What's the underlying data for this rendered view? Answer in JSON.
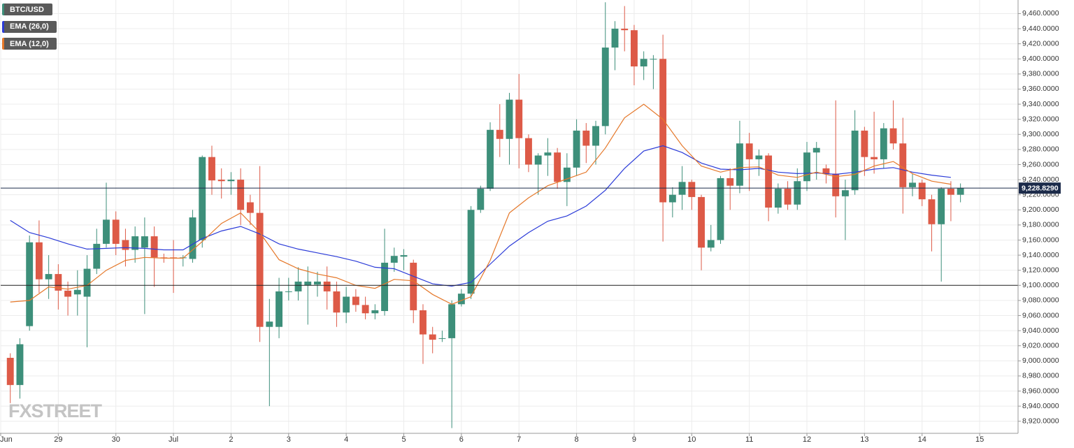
{
  "chart_data": {
    "type": "candlestick",
    "watermark": "FXSTREET",
    "grid": true,
    "xlim": [
      0,
      424
    ],
    "ylim": [
      8904,
      9478
    ],
    "xticks": [
      {
        "value": 0,
        "label": "Jun"
      },
      {
        "value": 24,
        "label": "29"
      },
      {
        "value": 48,
        "label": "30"
      },
      {
        "value": 72,
        "label": "Jul"
      },
      {
        "value": 96,
        "label": "2"
      },
      {
        "value": 120,
        "label": "3"
      },
      {
        "value": 144,
        "label": "4"
      },
      {
        "value": 168,
        "label": "5"
      },
      {
        "value": 192,
        "label": "6"
      },
      {
        "value": 216,
        "label": "7"
      },
      {
        "value": 240,
        "label": "8"
      },
      {
        "value": 264,
        "label": "9"
      },
      {
        "value": 288,
        "label": "10"
      },
      {
        "value": 312,
        "label": "11"
      },
      {
        "value": 336,
        "label": "12"
      },
      {
        "value": 360,
        "label": "13"
      },
      {
        "value": 384,
        "label": "14"
      },
      {
        "value": 408,
        "label": "15"
      }
    ],
    "yticks": [
      {
        "value": 8920,
        "label": "8,920.0000"
      },
      {
        "value": 8940,
        "label": "8,940.0000"
      },
      {
        "value": 8960,
        "label": "8,960.0000"
      },
      {
        "value": 8980,
        "label": "8,980.0000"
      },
      {
        "value": 9000,
        "label": "9,000.0000"
      },
      {
        "value": 9020,
        "label": "9,020.0000"
      },
      {
        "value": 9040,
        "label": "9,040.0000"
      },
      {
        "value": 9060,
        "label": "9,060.0000"
      },
      {
        "value": 9080,
        "label": "9,080.0000"
      },
      {
        "value": 9100,
        "label": "9,100.0000"
      },
      {
        "value": 9120,
        "label": "9,120.0000"
      },
      {
        "value": 9140,
        "label": "9,140.0000"
      },
      {
        "value": 9160,
        "label": "9,160.0000"
      },
      {
        "value": 9180,
        "label": "9,180.0000"
      },
      {
        "value": 9200,
        "label": "9,200.0000"
      },
      {
        "value": 9220,
        "label": "9,220.0000"
      },
      {
        "value": 9240,
        "label": "9,240.0000"
      },
      {
        "value": 9260,
        "label": "9,260.0000"
      },
      {
        "value": 9280,
        "label": "9,280.0000"
      },
      {
        "value": 9300,
        "label": "9,300.0000"
      },
      {
        "value": 9320,
        "label": "9,320.0000"
      },
      {
        "value": 9340,
        "label": "9,340.0000"
      },
      {
        "value": 9360,
        "label": "9,360.0000"
      },
      {
        "value": 9380,
        "label": "9,380.0000"
      },
      {
        "value": 9400,
        "label": "9,400.0000"
      },
      {
        "value": 9420,
        "label": "9,420.0000"
      },
      {
        "value": 9440,
        "label": "9,440.0000"
      },
      {
        "value": 9460,
        "label": "9,460.0000"
      }
    ],
    "current_price": {
      "value": 9228.829,
      "label": "9,228.8290",
      "color": "#1c2b4a"
    },
    "reference_line": {
      "value": 9100,
      "color": "#222222"
    },
    "series": [
      {
        "name": "BTC/USD",
        "up_color": "#3d8f7a",
        "down_color": "#dd5a47",
        "x": [
          4,
          8,
          12,
          16,
          20,
          24,
          28,
          32,
          36,
          40,
          44,
          48,
          52,
          56,
          60,
          64,
          68,
          72,
          76,
          80,
          84,
          88,
          92,
          96,
          100,
          104,
          108,
          112,
          116,
          120,
          124,
          128,
          132,
          136,
          140,
          144,
          148,
          152,
          156,
          160,
          164,
          168,
          172,
          176,
          180,
          184,
          188,
          192,
          196,
          200,
          204,
          208,
          212,
          216,
          220,
          224,
          228,
          232,
          236,
          240,
          244,
          248,
          252,
          256,
          260,
          264,
          268,
          272,
          276,
          280,
          284,
          288,
          292,
          296,
          300,
          304,
          308,
          312,
          316,
          320,
          324,
          328,
          332,
          336,
          340,
          344,
          348,
          352,
          356,
          360,
          364,
          368,
          372,
          376,
          380,
          384,
          388,
          392,
          396,
          400
        ],
        "open": [
          9004,
          8968,
          9046,
          9157,
          9108,
          9115,
          9093,
          9088,
          9085,
          9122,
          9155,
          9187,
          9160,
          9147,
          9150,
          9165,
          9137,
          9137,
          9136,
          9135,
          9160,
          9270,
          9240,
          9238,
          9240,
          9210,
          9196,
          9045,
          9045,
          9092,
          9092,
          9100,
          9101,
          9105,
          9092,
          9064,
          9085,
          9074,
          9063,
          9066,
          9130,
          9138,
          9130,
          9067,
          9035,
          9030,
          9030,
          9075,
          9089,
          9200,
          9228,
          9306,
          9294,
          9346,
          9295,
          9260,
          9272,
          9276,
          9237,
          9256,
          9305,
          9285,
          9311,
          9415,
          9440,
          9438,
          9390,
          9400,
          9400,
          9210,
          9220,
          9237,
          9217,
          9150,
          9160,
          9242,
          9232,
          9288,
          9267,
          9272,
          9203,
          9228,
          9207,
          9238,
          9276,
          9255,
          9248,
          9218,
          9226,
          9305,
          9270,
          9267,
          9308,
          9288,
          9230,
          9236,
          9214,
          9181,
          9228,
          9220
        ],
        "high": [
          9010,
          9030,
          9166,
          9186,
          9140,
          9128,
          9105,
          9120,
          9140,
          9175,
          9236,
          9198,
          9175,
          9178,
          9190,
          9178,
          9142,
          9160,
          9140,
          9200,
          9272,
          9285,
          9255,
          9250,
          9255,
          9220,
          9258,
          9082,
          9110,
          9110,
          9124,
          9125,
          9118,
          9125,
          9105,
          9098,
          9095,
          9085,
          9075,
          9175,
          9150,
          9148,
          9134,
          9075,
          9045,
          9040,
          9080,
          9095,
          9205,
          9232,
          9316,
          9340,
          9355,
          9380,
          9300,
          9275,
          9295,
          9282,
          9275,
          9320,
          9315,
          9318,
          9475,
          9450,
          9470,
          9445,
          9410,
          9405,
          9432,
          9230,
          9258,
          9240,
          9220,
          9180,
          9245,
          9255,
          9318,
          9302,
          9280,
          9275,
          9235,
          9238,
          9255,
          9290,
          9290,
          9260,
          9345,
          9240,
          9332,
          9310,
          9330,
          9315,
          9345,
          9322,
          9248,
          9240,
          9220,
          9230,
          9238,
          9235
        ],
        "low": [
          8944,
          8950,
          9040,
          9090,
          9082,
          9068,
          9060,
          9060,
          9018,
          9115,
          9150,
          9140,
          9125,
          9130,
          9062,
          9098,
          9130,
          9090,
          9125,
          9130,
          9150,
          9220,
          9215,
          9220,
          9180,
          9180,
          9025,
          8940,
          9030,
          9080,
          9080,
          9048,
          9085,
          9068,
          9045,
          9050,
          9065,
          9055,
          9055,
          9060,
          9118,
          9120,
          9050,
          8996,
          9010,
          9025,
          8911,
          9072,
          9082,
          9196,
          9225,
          9270,
          9260,
          9255,
          9250,
          9220,
          9245,
          9228,
          9205,
          9245,
          9262,
          9260,
          9300,
          9385,
          9410,
          9365,
          9372,
          9360,
          9158,
          9190,
          9200,
          9200,
          9120,
          9145,
          9155,
          9200,
          9222,
          9225,
          9245,
          9185,
          9195,
          9200,
          9200,
          9225,
          9240,
          9235,
          9190,
          9160,
          9220,
          9245,
          9248,
          9255,
          9280,
          9195,
          9218,
          9205,
          9145,
          9105,
          9185,
          9210
        ],
        "close": [
          8968,
          9022,
          9157,
          9108,
          9115,
          9093,
          9085,
          9094,
          9122,
          9155,
          9187,
          9155,
          9147,
          9165,
          9165,
          9137,
          9136,
          9136,
          9137,
          9190,
          9270,
          9239,
          9238,
          9240,
          9200,
          9196,
          9045,
          9052,
          9092,
          9092,
          9105,
          9105,
          9105,
          9092,
          9064,
          9085,
          9074,
          9063,
          9067,
          9130,
          9139,
          9140,
          9067,
          9035,
          9028,
          9030,
          9075,
          9089,
          9200,
          9228,
          9306,
          9294,
          9346,
          9295,
          9260,
          9272,
          9276,
          9237,
          9256,
          9305,
          9285,
          9311,
          9415,
          9440,
          9438,
          9390,
          9400,
          9400,
          9210,
          9220,
          9237,
          9217,
          9150,
          9160,
          9242,
          9232,
          9288,
          9267,
          9272,
          9203,
          9228,
          9207,
          9238,
          9276,
          9282,
          9248,
          9218,
          9226,
          9305,
          9270,
          9267,
          9308,
          9288,
          9230,
          9236,
          9214,
          9181,
          9228,
          9220,
          9229
        ]
      },
      {
        "name": "EMA (26,0)",
        "color": "#2b3bd8",
        "x": [
          4,
          12,
          20,
          28,
          36,
          44,
          52,
          60,
          68,
          76,
          84,
          92,
          100,
          108,
          116,
          124,
          132,
          140,
          148,
          156,
          164,
          172,
          180,
          188,
          196,
          204,
          212,
          220,
          228,
          236,
          244,
          252,
          260,
          268,
          276,
          284,
          292,
          300,
          308,
          316,
          324,
          332,
          340,
          348,
          356,
          364,
          372,
          380,
          388,
          396
        ],
        "values": [
          9186,
          9170,
          9163,
          9155,
          9148,
          9149,
          9150,
          9149,
          9147,
          9147,
          9162,
          9172,
          9178,
          9168,
          9155,
          9148,
          9143,
          9138,
          9132,
          9124,
          9122,
          9112,
          9102,
          9099,
          9104,
          9128,
          9152,
          9170,
          9185,
          9192,
          9205,
          9226,
          9255,
          9278,
          9285,
          9276,
          9262,
          9254,
          9253,
          9255,
          9250,
          9248,
          9249,
          9247,
          9250,
          9254,
          9256,
          9250,
          9246,
          9243
        ]
      },
      {
        "name": "EMA (12,0)",
        "color": "#e5782a",
        "x": [
          4,
          12,
          20,
          28,
          36,
          44,
          52,
          60,
          68,
          76,
          84,
          92,
          100,
          108,
          116,
          124,
          132,
          140,
          148,
          156,
          164,
          172,
          180,
          188,
          196,
          204,
          212,
          220,
          228,
          236,
          244,
          252,
          260,
          268,
          276,
          284,
          292,
          300,
          308,
          316,
          324,
          332,
          340,
          348,
          356,
          364,
          372,
          380,
          388,
          396
        ],
        "values": [
          9078,
          9080,
          9098,
          9095,
          9100,
          9120,
          9133,
          9137,
          9136,
          9136,
          9158,
          9182,
          9196,
          9170,
          9134,
          9122,
          9115,
          9110,
          9100,
          9096,
          9108,
          9106,
          9088,
          9075,
          9085,
          9133,
          9196,
          9216,
          9232,
          9241,
          9250,
          9282,
          9322,
          9340,
          9320,
          9285,
          9258,
          9250,
          9256,
          9257,
          9246,
          9243,
          9250,
          9244,
          9247,
          9258,
          9264,
          9248,
          9238,
          9234
        ]
      }
    ]
  }
}
